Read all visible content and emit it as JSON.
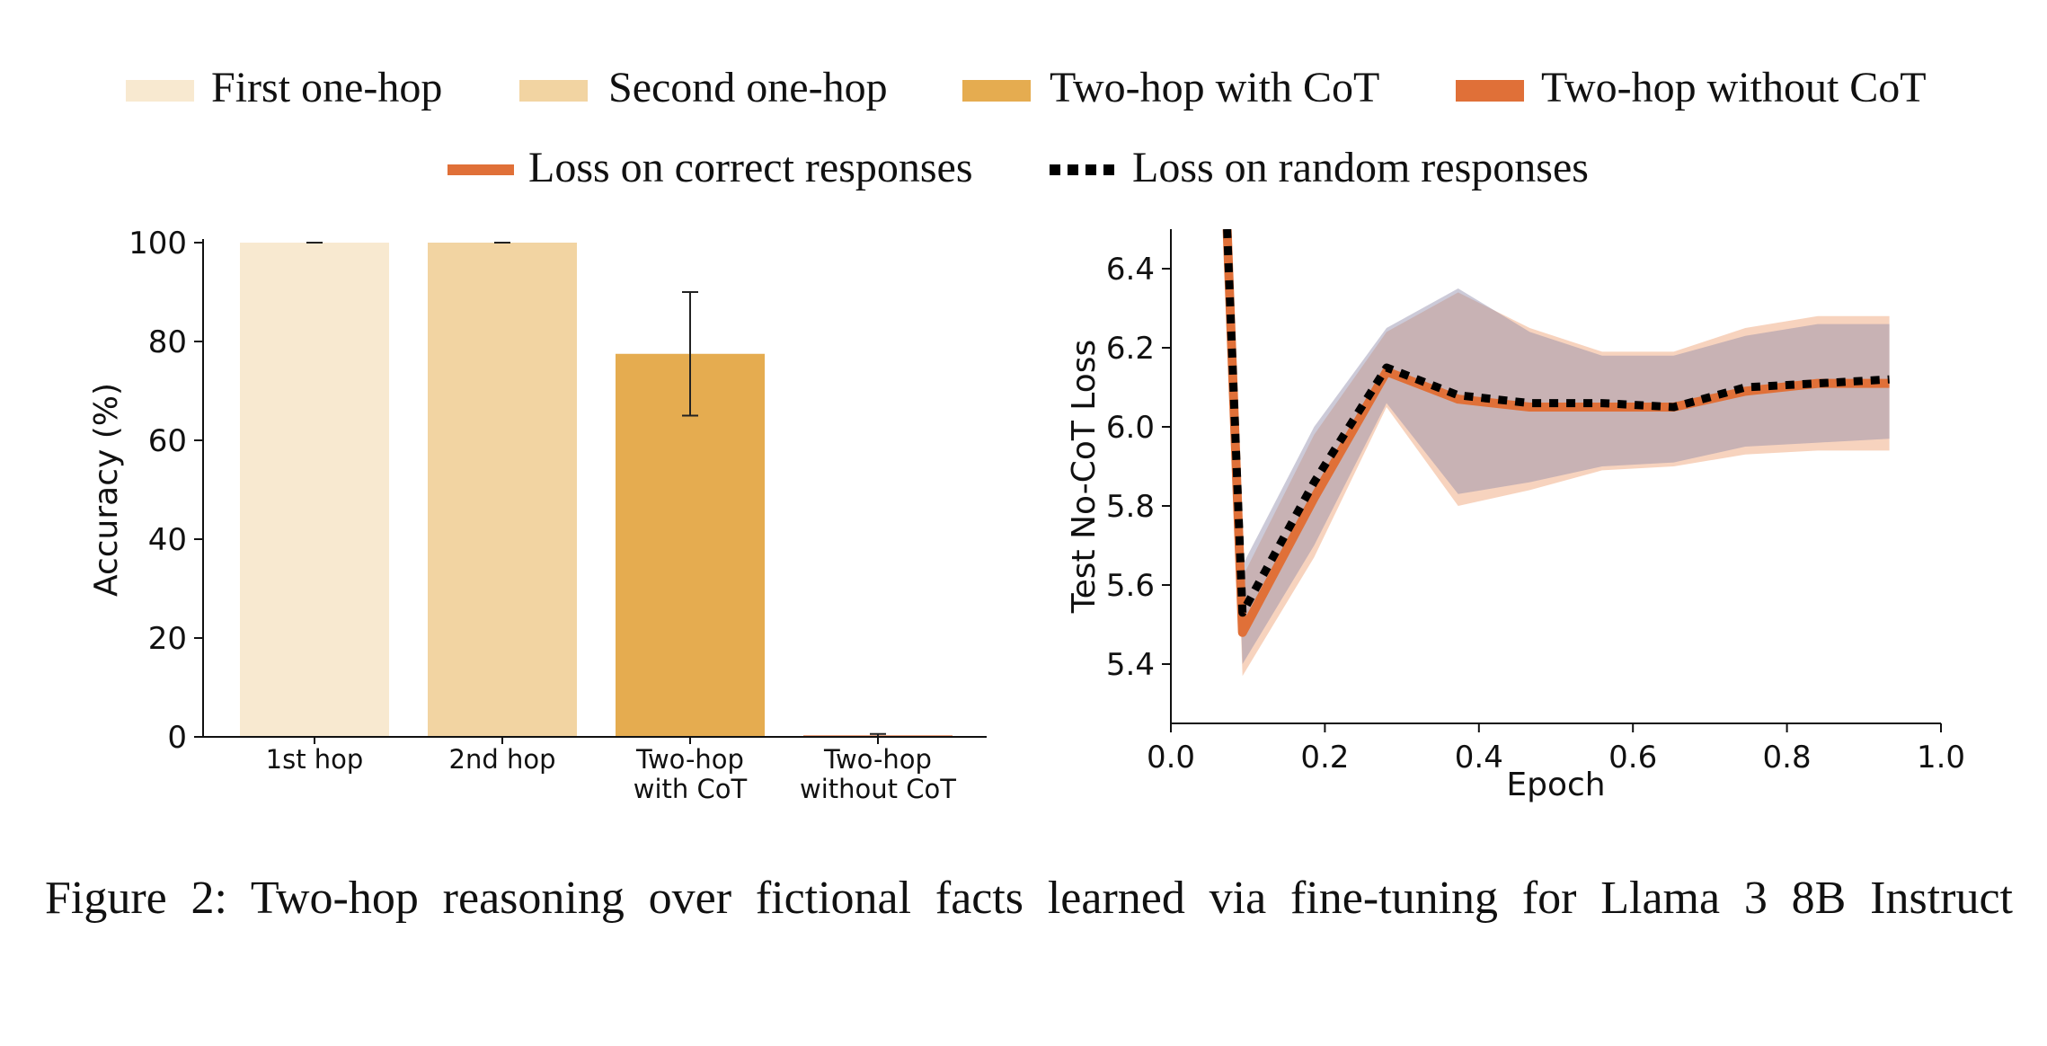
{
  "legend": {
    "items": [
      {
        "label": "First one-hop",
        "color": "#f8e9d0",
        "kind": "patch"
      },
      {
        "label": "Second one-hop",
        "color": "#f2d4a2",
        "kind": "patch"
      },
      {
        "label": "Two-hop with CoT",
        "color": "#e5ac50",
        "kind": "patch"
      },
      {
        "label": "Two-hop without CoT",
        "color": "#e07038",
        "kind": "patch"
      },
      {
        "label": "Loss on correct responses",
        "color": "#e07038",
        "kind": "line"
      },
      {
        "label": "Loss on random responses",
        "color": "#000000",
        "kind": "dotted"
      }
    ]
  },
  "chart_data": [
    {
      "type": "bar",
      "ylabel": "Accuracy (%)",
      "xlabel": "",
      "ylim": [
        0,
        100
      ],
      "yticks": [
        0,
        20,
        40,
        60,
        80,
        100
      ],
      "categories": [
        [
          "1st hop"
        ],
        [
          "2nd hop"
        ],
        [
          "Two-hop",
          "with CoT"
        ],
        [
          "Two-hop",
          "without CoT"
        ]
      ],
      "values": [
        100,
        100,
        77.5,
        0.3
      ],
      "error_low": [
        100,
        100,
        65,
        0
      ],
      "error_high": [
        100,
        100,
        90,
        0.6
      ],
      "colors": [
        "#f8e9d0",
        "#f2d4a2",
        "#e5ac50",
        "#e07038"
      ]
    },
    {
      "type": "line",
      "xlabel": "Epoch",
      "ylabel": "Test No-CoT Loss",
      "xlim": [
        0.0,
        1.0
      ],
      "ylim": [
        5.25,
        6.5
      ],
      "xticks": [
        "0.0",
        "0.2",
        "0.4",
        "0.6",
        "0.8",
        "1.0"
      ],
      "yticks": [
        "5.4",
        "5.6",
        "5.8",
        "6.0",
        "6.2",
        "6.4"
      ],
      "x": [
        0.073,
        0.093,
        0.186,
        0.28,
        0.373,
        0.466,
        0.56,
        0.653,
        0.746,
        0.84,
        0.933
      ],
      "series": [
        {
          "name": "Loss on correct responses",
          "color": "#e07038",
          "values": [
            6.5,
            5.48,
            5.82,
            6.14,
            6.07,
            6.05,
            6.05,
            6.05,
            6.09,
            6.11,
            6.11
          ],
          "band_low": [
            6.5,
            5.37,
            5.67,
            6.05,
            5.8,
            5.84,
            5.89,
            5.9,
            5.93,
            5.94,
            5.94
          ],
          "band_high": [
            6.5,
            5.62,
            5.98,
            6.24,
            6.34,
            6.25,
            6.19,
            6.19,
            6.25,
            6.28,
            6.28
          ]
        },
        {
          "name": "Loss on random responses",
          "color": "#000000",
          "values": [
            6.5,
            5.53,
            5.86,
            6.15,
            6.08,
            6.06,
            6.06,
            6.05,
            6.1,
            6.11,
            6.12
          ],
          "band_low": [
            6.5,
            5.4,
            5.7,
            6.06,
            5.83,
            5.86,
            5.9,
            5.91,
            5.95,
            5.96,
            5.97
          ],
          "band_high": [
            6.5,
            5.65,
            6.0,
            6.25,
            6.35,
            6.24,
            6.18,
            6.18,
            6.23,
            6.26,
            6.26
          ]
        }
      ]
    }
  ],
  "caption": "Figure 2: Two-hop reasoning over fictional facts learned via fine-tuning for Llama 3 8B Instruct"
}
